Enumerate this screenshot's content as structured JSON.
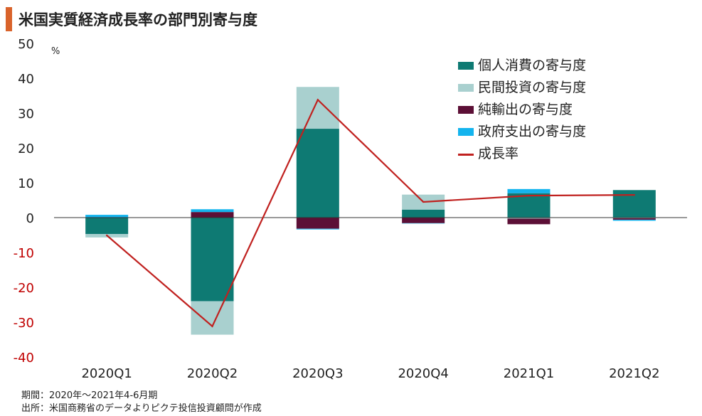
{
  "header": {
    "title": "米国実質経済成長率の部門別寄与度",
    "accent_color": "#d9632b"
  },
  "chart_data": {
    "type": "bar",
    "stacked": true,
    "title": "米国実質経済成長率の部門別寄与度",
    "unit_label": "%",
    "categories": [
      "2020Q1",
      "2020Q2",
      "2020Q3",
      "2020Q4",
      "2021Q1",
      "2021Q2"
    ],
    "ylim": [
      -40,
      50
    ],
    "yticks": [
      50,
      40,
      30,
      20,
      10,
      0,
      -10,
      -20,
      -30,
      -40
    ],
    "negative_tick_color": "#c00000",
    "grid": false,
    "legend_position": "top-right",
    "series": [
      {
        "name": "個人消費の寄与度",
        "color": "#0e7a73",
        "values": [
          -4.7,
          -24.0,
          25.5,
          2.3,
          7.0,
          7.9
        ]
      },
      {
        "name": "民間投資の寄与度",
        "color": "#a9d0cf",
        "values": [
          -1.0,
          -9.6,
          12.0,
          4.3,
          -0.3,
          -0.2
        ]
      },
      {
        "name": "純輸出の寄与度",
        "color": "#5c0f36",
        "values": [
          0.1,
          1.6,
          -3.2,
          -1.6,
          -1.6,
          -0.4
        ]
      },
      {
        "name": "政府支出の寄与度",
        "color": "#14b4ee",
        "values": [
          0.7,
          0.8,
          -0.2,
          -0.1,
          1.2,
          -0.3
        ]
      }
    ],
    "line": {
      "name": "成長率",
      "color": "#c0211f",
      "values": [
        -5.1,
        -31.2,
        33.8,
        4.5,
        6.3,
        6.5
      ]
    }
  },
  "footnotes": {
    "period": "期間：2020年～2021年4-6月期",
    "source": "出所：米国商務省のデータよりピクテ投信投資顧問が作成"
  }
}
